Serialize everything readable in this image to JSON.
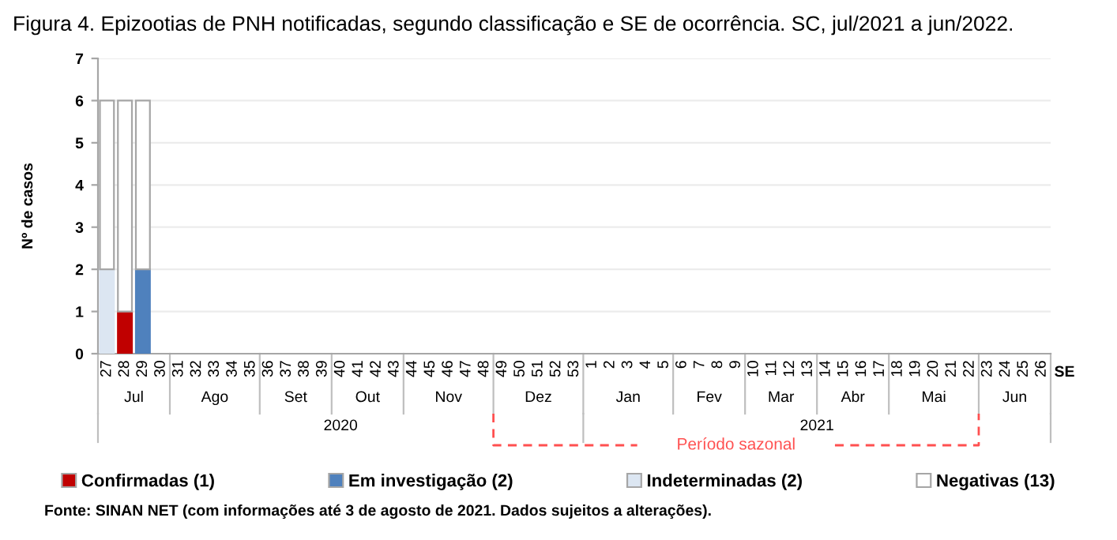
{
  "chart_data": {
    "type": "bar",
    "stacked": true,
    "title": "Figura 4. Epizootias de PNH notificadas, segundo classificação e SE de ocorrência. SC, jul/2021 a jun/2022.",
    "ylabel": "Nº de casos",
    "xlabel": "SE",
    "categories": [
      "27",
      "28",
      "29",
      "30",
      "31",
      "32",
      "33",
      "34",
      "35",
      "36",
      "37",
      "38",
      "39",
      "40",
      "41",
      "42",
      "43",
      "44",
      "45",
      "46",
      "47",
      "48",
      "49",
      "50",
      "51",
      "52",
      "53",
      "1",
      "2",
      "3",
      "4",
      "5",
      "6",
      "7",
      "8",
      "9",
      "10",
      "11",
      "12",
      "13",
      "14",
      "15",
      "16",
      "17",
      "18",
      "19",
      "20",
      "21",
      "22",
      "23",
      "24",
      "25",
      "26"
    ],
    "series": [
      {
        "name": "Confirmadas (1)",
        "color": "#c00000",
        "values": [
          0,
          1,
          0,
          0,
          0,
          0,
          0,
          0,
          0,
          0,
          0,
          0,
          0,
          0,
          0,
          0,
          0,
          0,
          0,
          0,
          0,
          0,
          0,
          0,
          0,
          0,
          0,
          0,
          0,
          0,
          0,
          0,
          0,
          0,
          0,
          0,
          0,
          0,
          0,
          0,
          0,
          0,
          0,
          0,
          0,
          0,
          0,
          0,
          0,
          0,
          0,
          0,
          0
        ]
      },
      {
        "name": "Em investigação (2)",
        "color": "#4f81bd",
        "values": [
          0,
          0,
          2,
          0,
          0,
          0,
          0,
          0,
          0,
          0,
          0,
          0,
          0,
          0,
          0,
          0,
          0,
          0,
          0,
          0,
          0,
          0,
          0,
          0,
          0,
          0,
          0,
          0,
          0,
          0,
          0,
          0,
          0,
          0,
          0,
          0,
          0,
          0,
          0,
          0,
          0,
          0,
          0,
          0,
          0,
          0,
          0,
          0,
          0,
          0,
          0,
          0,
          0
        ]
      },
      {
        "name": "Indeterminadas (2)",
        "color": "#dce6f2",
        "values": [
          2,
          0,
          0,
          0,
          0,
          0,
          0,
          0,
          0,
          0,
          0,
          0,
          0,
          0,
          0,
          0,
          0,
          0,
          0,
          0,
          0,
          0,
          0,
          0,
          0,
          0,
          0,
          0,
          0,
          0,
          0,
          0,
          0,
          0,
          0,
          0,
          0,
          0,
          0,
          0,
          0,
          0,
          0,
          0,
          0,
          0,
          0,
          0,
          0,
          0,
          0,
          0,
          0
        ]
      },
      {
        "name": "Negativas (13)",
        "color": "#ffffff",
        "values": [
          4,
          5,
          4,
          0,
          0,
          0,
          0,
          0,
          0,
          0,
          0,
          0,
          0,
          0,
          0,
          0,
          0,
          0,
          0,
          0,
          0,
          0,
          0,
          0,
          0,
          0,
          0,
          0,
          0,
          0,
          0,
          0,
          0,
          0,
          0,
          0,
          0,
          0,
          0,
          0,
          0,
          0,
          0,
          0,
          0,
          0,
          0,
          0,
          0,
          0,
          0,
          0,
          0
        ]
      }
    ],
    "ylim": [
      0,
      7
    ],
    "yticks": [
      0,
      1,
      2,
      3,
      4,
      5,
      6,
      7
    ],
    "grid": "y",
    "legend": "bottom",
    "annotations": [
      "Jul",
      "Ago",
      "Set",
      "Out",
      "Nov",
      "Dez",
      "Jan",
      "Fev",
      "Mar",
      "Abr",
      "Mai",
      "Jun",
      "2020",
      "2021",
      "Período sazonal",
      "Fonte: SINAN NET (com informações até 3 de agosto de 2021. Dados sujeitos a alterações)."
    ]
  }
}
